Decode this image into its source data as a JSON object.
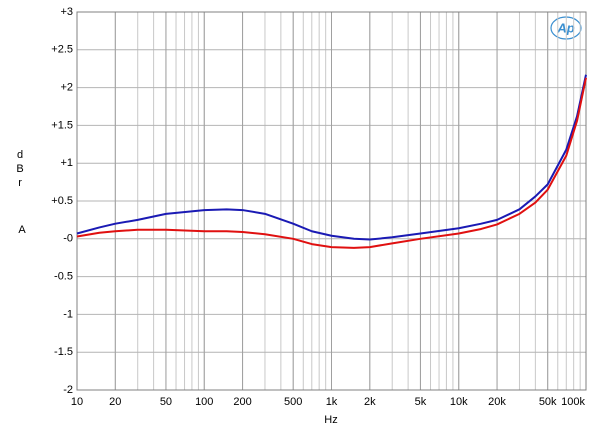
{
  "chart_data": {
    "type": "line",
    "logo": "Ap",
    "xlabel": "Hz",
    "ylabel": "dBr",
    "ylabel_unit": "A",
    "xscale": "log",
    "grid": true,
    "xlim": [
      10,
      100000
    ],
    "ylim": [
      -2,
      3
    ],
    "xticks": [
      10,
      20,
      50,
      100,
      200,
      500,
      {
        "value": 1000,
        "label": "1k"
      },
      {
        "value": 2000,
        "label": "2k"
      },
      {
        "value": 5000,
        "label": "5k"
      },
      {
        "value": 10000,
        "label": "10k"
      },
      {
        "value": 20000,
        "label": "20k"
      },
      {
        "value": 50000,
        "label": "50k"
      },
      {
        "value": 100000,
        "label": "100k"
      }
    ],
    "yticks": [
      {
        "value": 3,
        "label": "+3"
      },
      {
        "value": 2.5,
        "label": "+2.5"
      },
      {
        "value": 2,
        "label": "+2"
      },
      {
        "value": 1.5,
        "label": "+1.5"
      },
      {
        "value": 1,
        "label": "+1"
      },
      {
        "value": 0.5,
        "label": "+0.5"
      },
      {
        "value": 0,
        "label": "-0"
      },
      -0.5,
      -1,
      -1.5,
      -2
    ],
    "x": [
      10,
      15,
      20,
      30,
      50,
      100,
      150,
      200,
      300,
      500,
      700,
      1000,
      1500,
      2000,
      3000,
      5000,
      10000,
      15000,
      20000,
      30000,
      40000,
      50000,
      70000,
      85000,
      100000
    ],
    "series": [
      {
        "color": "#1a1ab4",
        "values": [
          0.07,
          0.15,
          0.2,
          0.25,
          0.33,
          0.38,
          0.39,
          0.38,
          0.33,
          0.2,
          0.1,
          0.04,
          0.0,
          -0.01,
          0.02,
          0.07,
          0.14,
          0.2,
          0.25,
          0.39,
          0.56,
          0.72,
          1.18,
          1.62,
          2.17
        ]
      },
      {
        "color": "#e01010",
        "values": [
          0.03,
          0.08,
          0.1,
          0.12,
          0.12,
          0.1,
          0.1,
          0.09,
          0.06,
          0.0,
          -0.07,
          -0.11,
          -0.12,
          -0.11,
          -0.06,
          0.0,
          0.07,
          0.13,
          0.19,
          0.33,
          0.48,
          0.65,
          1.1,
          1.56,
          2.13
        ]
      }
    ]
  }
}
